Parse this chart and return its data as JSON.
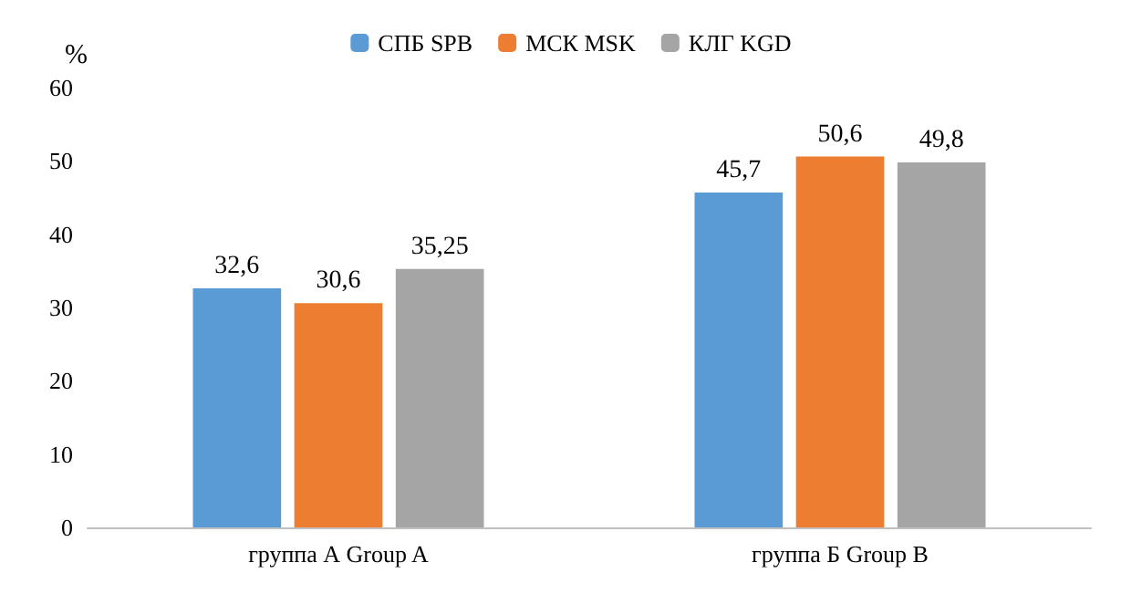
{
  "chart_data": {
    "type": "bar",
    "ylabel": "%",
    "categories": [
      "группа А Group A",
      "группа Б Group B"
    ],
    "series": [
      {
        "name": "СПБ SPB",
        "color": "#5b9bd5",
        "values": [
          32.6,
          45.7
        ],
        "value_labels": [
          "32,6",
          "45,7"
        ]
      },
      {
        "name": "МСК MSK",
        "color": "#ed7d31",
        "values": [
          30.6,
          50.6
        ],
        "value_labels": [
          "30,6",
          "50,6"
        ]
      },
      {
        "name": "КЛГ KGD",
        "color": "#a5a5a5",
        "values": [
          35.25,
          49.8
        ],
        "value_labels": [
          "35,25",
          "49,8"
        ]
      }
    ],
    "ylim": [
      0,
      60
    ],
    "yticks": [
      0,
      10,
      20,
      30,
      40,
      50,
      60
    ],
    "grid": false,
    "legend": "top"
  }
}
